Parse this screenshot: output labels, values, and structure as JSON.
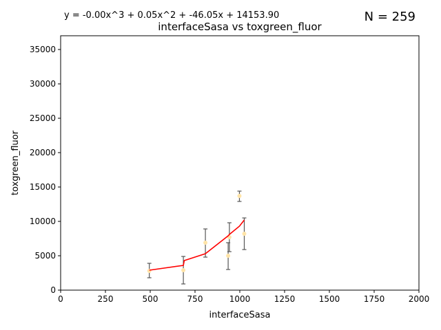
{
  "chart_data": {
    "type": "scatter",
    "title": "interfaceSasa vs toxgreen_fluor",
    "equation": "y = -0.00x^3 + 0.05x^2 + -46.05x + 14153.90",
    "n_label": "N = 259",
    "xlabel": "interfaceSasa",
    "ylabel": "toxgreen_fluor",
    "xlim": [
      0,
      2000
    ],
    "ylim": [
      0,
      37000
    ],
    "xticks": [
      0,
      250,
      500,
      750,
      1000,
      1250,
      1500,
      1750,
      2000
    ],
    "yticks": [
      0,
      5000,
      10000,
      15000,
      20000,
      25000,
      30000,
      35000
    ],
    "grid": false,
    "colors": {
      "points": "#ffe4a8",
      "error_bars": "#555555",
      "fit_line": "#ff0000"
    },
    "points": [
      {
        "x": 495,
        "y": 2800,
        "err_low": 1800,
        "err_high": 3900
      },
      {
        "x": 685,
        "y": 2900,
        "err_low": 900,
        "err_high": 4900
      },
      {
        "x": 808,
        "y": 6900,
        "err_low": 4800,
        "err_high": 8900
      },
      {
        "x": 935,
        "y": 5000,
        "err_low": 3000,
        "err_high": 6900
      },
      {
        "x": 942,
        "y": 7700,
        "err_low": 5600,
        "err_high": 9800
      },
      {
        "x": 998,
        "y": 13700,
        "err_low": 12900,
        "err_high": 14400
      },
      {
        "x": 1025,
        "y": 8200,
        "err_low": 5900,
        "err_high": 10500
      }
    ],
    "fit_line": {
      "x": [
        495,
        685,
        690,
        808,
        935,
        942,
        998,
        1025
      ],
      "y": [
        2900,
        3600,
        4300,
        5300,
        7900,
        8100,
        9300,
        10200
      ]
    }
  }
}
